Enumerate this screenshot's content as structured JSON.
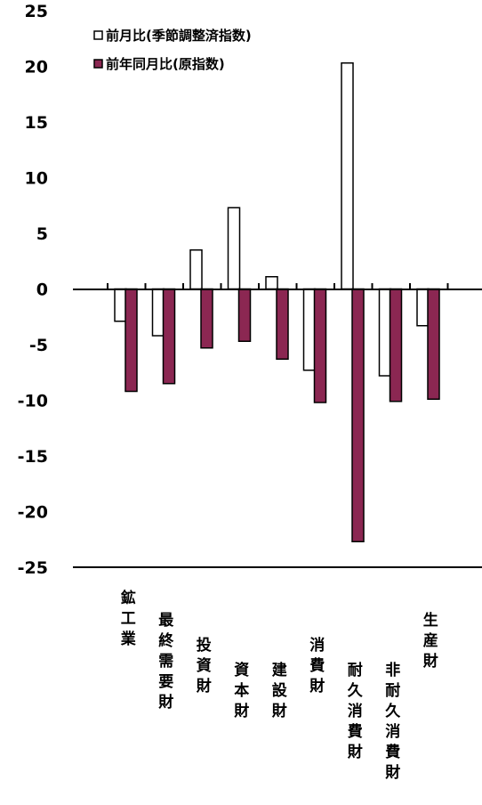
{
  "colors": {
    "series_mom_fill": "#ffffff",
    "series_yoy_fill": "#8b2752",
    "bar_stroke": "#000000",
    "axis": "#000000"
  },
  "legend": {
    "items": [
      {
        "label": "前月比(季節調整済指数)"
      },
      {
        "label": "前年同月比(原指数)"
      }
    ]
  },
  "chart_data": {
    "type": "bar",
    "categories": [
      "鉱工業",
      "最終需要財",
      "投資財",
      "資本財",
      "建設財",
      "消費財",
      "耐久消費財",
      "非耐久消費財",
      "生産財"
    ],
    "series": [
      {
        "name": "前月比(季節調整済指数)",
        "values": [
          -2.9,
          -4.2,
          3.5,
          7.3,
          1.1,
          -7.3,
          20.3,
          -7.8,
          -3.3
        ]
      },
      {
        "name": "前年同月比(原指数)",
        "values": [
          -9.2,
          -8.5,
          -5.3,
          -4.7,
          -6.3,
          -10.2,
          -22.7,
          -10.1,
          -9.9
        ]
      }
    ],
    "ylim": [
      -25,
      25
    ],
    "yticks": [
      "25",
      "20",
      "15",
      "10",
      "5",
      "0",
      "-5",
      "-10",
      "-15",
      "-20",
      "-25"
    ],
    "grid": false,
    "legend_position": "top-left"
  }
}
